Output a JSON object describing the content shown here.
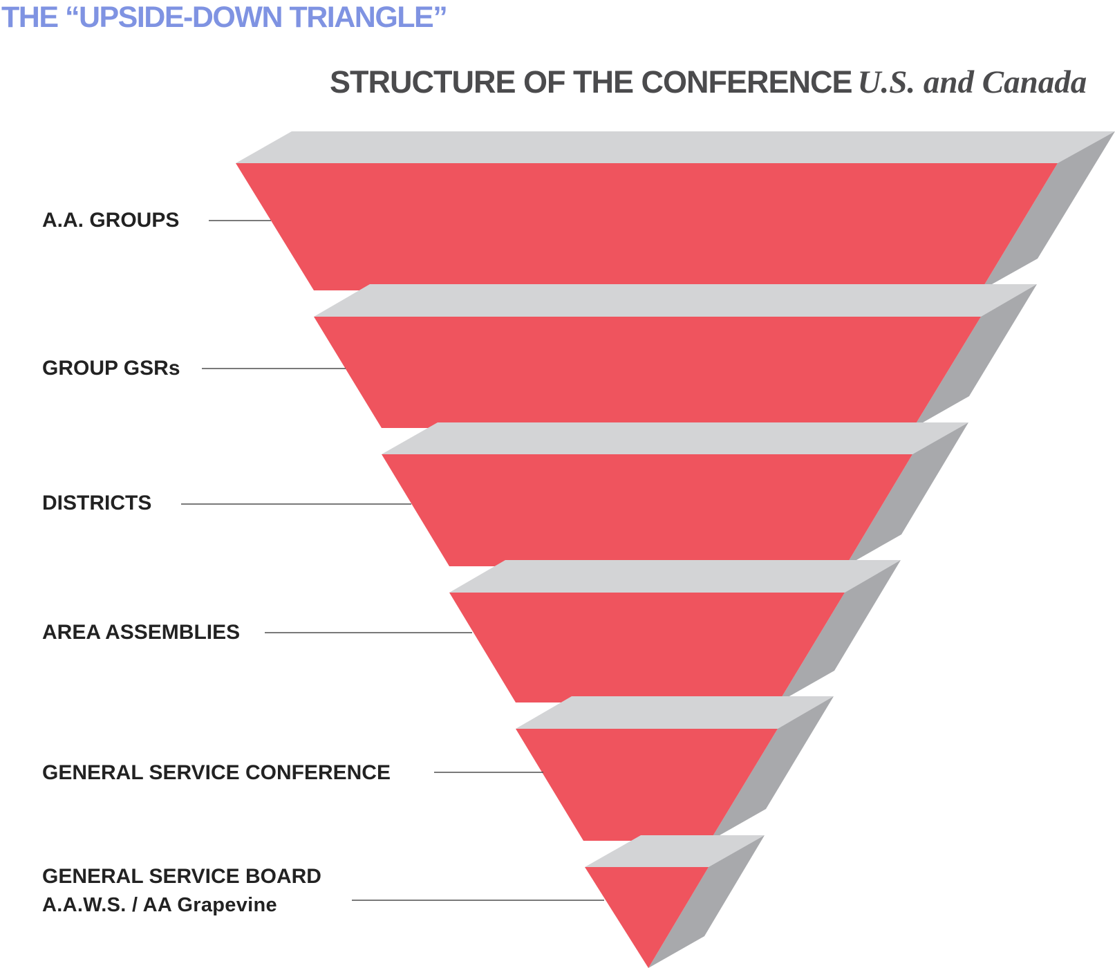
{
  "title": "THE “UPSIDE-DOWN TRIANGLE”",
  "subtitle": {
    "main": "STRUCTURE OF THE CONFERENCE",
    "region": "U.S. and Canada"
  },
  "levels": [
    {
      "label": "A.A. GROUPS",
      "sublabel": ""
    },
    {
      "label": "GROUP GSRs",
      "sublabel": ""
    },
    {
      "label": "DISTRICTS",
      "sublabel": ""
    },
    {
      "label": "AREA ASSEMBLIES",
      "sublabel": ""
    },
    {
      "label": "GENERAL SERVICE CONFERENCE",
      "sublabel": ""
    },
    {
      "label": "GENERAL SERVICE BOARD",
      "sublabel": "A.A.W.S. / AA Grapevine"
    }
  ],
  "colors": {
    "title": "#7f93e2",
    "face": "#ef545e",
    "top_face": "#d3d4d6",
    "side_face": "#a8a9ac",
    "connector": "#4d4d4d",
    "label": "#222222"
  }
}
